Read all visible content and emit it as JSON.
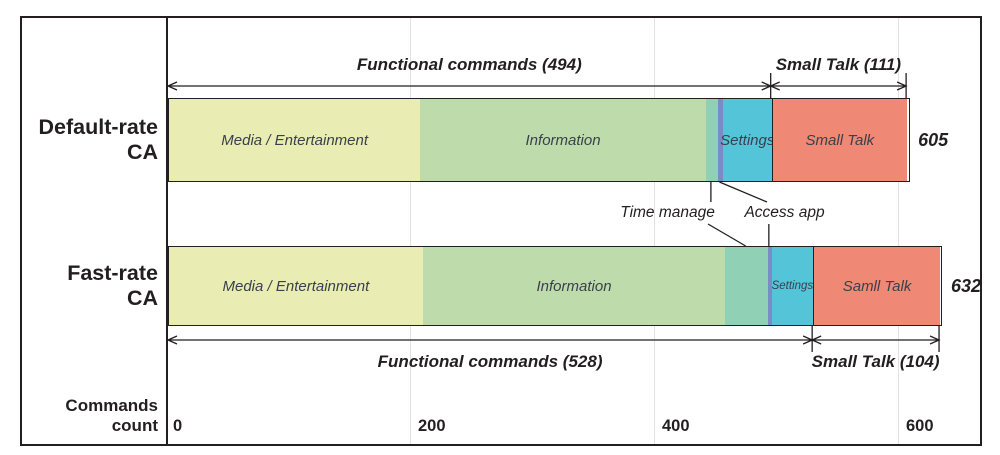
{
  "chart_data": {
    "type": "bar",
    "orientation": "horizontal",
    "stacked": true,
    "title": "",
    "xlabel": "Commands count",
    "ylabel": "",
    "x_ticks": [
      0,
      200,
      400,
      600
    ],
    "xlim": [
      0,
      665
    ],
    "grid": true,
    "categories": [
      "Media / Entertainment",
      "Information",
      "Time manage",
      "Access app",
      "Settings",
      "Small Talk"
    ],
    "callouts": [
      {
        "label": "Time manage"
      },
      {
        "label": "Access app"
      }
    ],
    "rows": [
      {
        "label": "Default-rate CA",
        "label_lines": [
          "Default-rate",
          "CA"
        ],
        "total": 605,
        "functional_total": 494,
        "smalltalk_total": 111,
        "functional_label": "Functional commands (494)",
        "smalltalk_label": "Small Talk (111)",
        "annotation_side": "above",
        "segments": [
          {
            "name": "Media / Entertainment",
            "value": 206,
            "color": "#e9edb3",
            "label": "Media / Entertainment"
          },
          {
            "name": "Information",
            "value": 234,
            "color": "#bedcab",
            "label": "Information"
          },
          {
            "name": "Time manage",
            "value": 10,
            "color": "#90d0b4",
            "label": ""
          },
          {
            "name": "Access app",
            "value": 4,
            "color": "#7a8cc6",
            "label": ""
          },
          {
            "name": "Settings",
            "value": 40,
            "color": "#54c4d9",
            "label": "Settings"
          },
          {
            "name": "Small Talk",
            "value": 111,
            "color": "#ef8875",
            "label": "Small Talk",
            "divider": true
          }
        ]
      },
      {
        "label": "Fast-rate CA",
        "label_lines": [
          "Fast-rate",
          "CA"
        ],
        "total": 632,
        "functional_total": 528,
        "smalltalk_total": 104,
        "functional_label": "Functional commands (528)",
        "smalltalk_label": "Small Talk (104)",
        "annotation_side": "below",
        "segments": [
          {
            "name": "Media / Entertainment",
            "value": 208,
            "color": "#e9edb3",
            "label": "Media / Entertainment"
          },
          {
            "name": "Information",
            "value": 248,
            "color": "#bedcab",
            "label": "Information"
          },
          {
            "name": "Time manage",
            "value": 35,
            "color": "#90d0b4",
            "label": ""
          },
          {
            "name": "Access app",
            "value": 3,
            "color": "#7a8cc6",
            "label": ""
          },
          {
            "name": "Settings",
            "value": 34,
            "color": "#54c4d9",
            "label": "Settings"
          },
          {
            "name": "Small Talk",
            "value": 104,
            "color": "#ef8875",
            "label": "Samll Talk",
            "divider": true
          }
        ]
      }
    ],
    "line_color": "#231f20",
    "gridline_color": "#e2e2e0"
  }
}
